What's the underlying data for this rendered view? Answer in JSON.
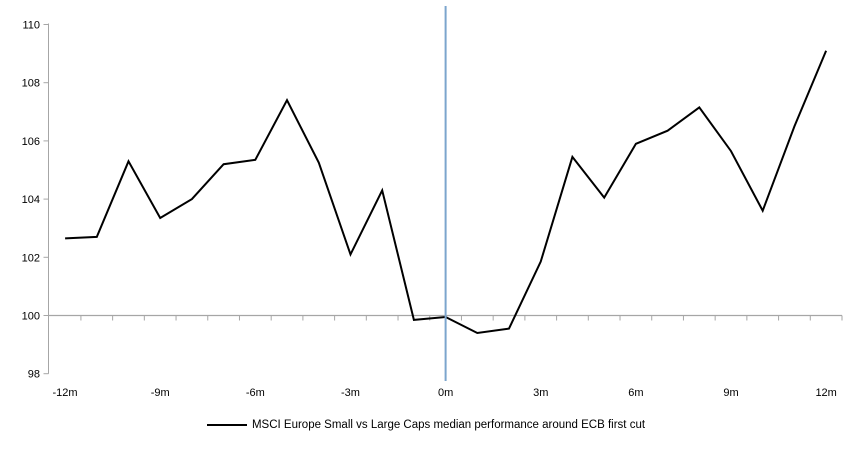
{
  "chart_data": {
    "type": "line",
    "title": "",
    "xlabel": "",
    "ylabel": "",
    "categories": [
      "-12m",
      "-11m",
      "-10m",
      "-9m",
      "-8m",
      "-7m",
      "-6m",
      "-5m",
      "-4m",
      "-3m",
      "-2m",
      "-1m",
      "0m",
      "1m",
      "2m",
      "3m",
      "4m",
      "5m",
      "6m",
      "7m",
      "8m",
      "9m",
      "10m",
      "11m",
      "12m"
    ],
    "series": [
      {
        "name": "MSCI Europe Small vs Large Caps median performance around ECB first cut",
        "values": [
          102.65,
          102.7,
          105.3,
          103.35,
          104.0,
          105.2,
          105.35,
          107.4,
          105.25,
          102.1,
          104.3,
          99.85,
          99.95,
          99.4,
          99.55,
          101.85,
          105.45,
          104.05,
          105.9,
          106.35,
          107.15,
          105.65,
          103.6,
          106.5,
          109.1
        ]
      }
    ],
    "y_axis": {
      "min": 98,
      "max": 110,
      "step": 2,
      "tick_labels": [
        "98",
        "100",
        "102",
        "104",
        "106",
        "108",
        "110"
      ]
    },
    "x_ticks_shown": [
      "-12m",
      "-9m",
      "-6m",
      "-3m",
      "0m",
      "3m",
      "6m",
      "9m",
      "12m"
    ],
    "baseline_value": 100,
    "event_line": {
      "at_category": "0m"
    },
    "grid": "baseline-only",
    "legend_position": "bottom-center",
    "colors": {
      "series_line": "#000000",
      "event_line": "#7CA5CD",
      "axis": "#A6A6A6",
      "baseline": "#A6A6A6",
      "text": "#000000",
      "background": "#FFFFFF"
    }
  }
}
